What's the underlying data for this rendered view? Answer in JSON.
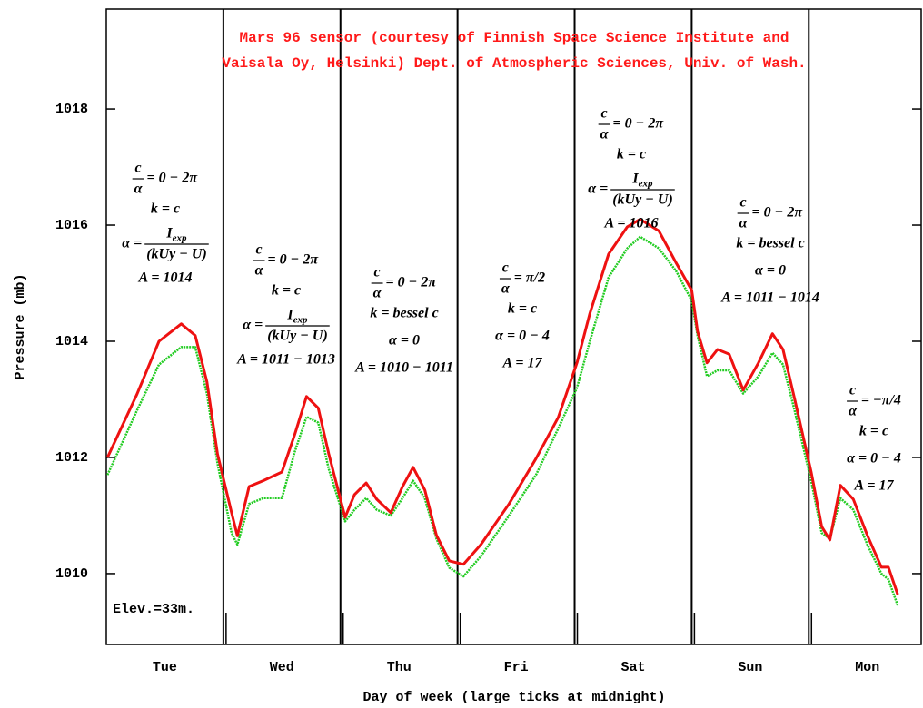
{
  "chart_data": {
    "type": "line",
    "title_lines": [
      "Mars 96 sensor (courtesy of Finnish Space Science Institute and",
      "Vaisala Oy, Helsinki) Dept. of Atmospheric Sciences, Univ. of Wash."
    ],
    "y_label": "Pressure (mb)",
    "x_label": "Day of week (large ticks at midnight)",
    "note": "Elev.=33m.",
    "categories": [
      "Tue",
      "Wed",
      "Thu",
      "Fri",
      "Sat",
      "Sun",
      "Mon"
    ],
    "xlim": [
      0,
      6.96
    ],
    "ylim": [
      1008.78,
      1019.72
    ],
    "yticks": [
      1010,
      1012,
      1014,
      1016,
      1018
    ],
    "x": [
      0.01,
      0.26,
      0.45,
      0.64,
      0.76,
      0.86,
      0.95,
      1.07,
      1.12,
      1.22,
      1.34,
      1.5,
      1.61,
      1.71,
      1.81,
      1.9,
      2.04,
      2.12,
      2.22,
      2.31,
      2.43,
      2.53,
      2.62,
      2.72,
      2.82,
      2.93,
      3.05,
      3.2,
      3.44,
      3.67,
      3.86,
      4.02,
      4.13,
      4.29,
      4.45,
      4.56,
      4.72,
      4.87,
      5.0,
      5.05,
      5.13,
      5.22,
      5.32,
      5.44,
      5.57,
      5.69,
      5.78,
      5.88,
      6.02,
      6.11,
      6.18,
      6.27,
      6.38,
      6.5,
      6.62,
      6.68,
      6.76
    ],
    "series": [
      {
        "color": "#22cc22",
        "values": [
          1011.7,
          1012.8,
          1013.6,
          1013.9,
          1013.9,
          1013.1,
          1011.9,
          1010.7,
          1010.5,
          1011.2,
          1011.3,
          1011.3,
          1012.1,
          1012.7,
          1012.6,
          1011.8,
          1010.9,
          1011.1,
          1011.3,
          1011.1,
          1011.0,
          1011.3,
          1011.6,
          1011.3,
          1010.6,
          1010.1,
          1009.95,
          1010.3,
          1011.0,
          1011.7,
          1012.5,
          1013.2,
          1014.0,
          1015.1,
          1015.6,
          1015.8,
          1015.6,
          1015.2,
          1014.7,
          1014.1,
          1013.4,
          1013.5,
          1013.5,
          1013.1,
          1013.4,
          1013.8,
          1013.6,
          1012.8,
          1011.6,
          1010.7,
          1010.6,
          1011.3,
          1011.1,
          1010.5,
          1010.0,
          1009.9,
          1009.45
        ]
      },
      {
        "color": "#ee1111",
        "values": [
          1012.0,
          1013.08,
          1014.0,
          1014.3,
          1014.1,
          1013.3,
          1012.06,
          1011.05,
          1010.65,
          1011.5,
          1011.6,
          1011.75,
          1012.4,
          1013.05,
          1012.85,
          1012.06,
          1010.97,
          1011.36,
          1011.56,
          1011.28,
          1011.05,
          1011.5,
          1011.83,
          1011.44,
          1010.66,
          1010.22,
          1010.16,
          1010.5,
          1011.2,
          1011.98,
          1012.69,
          1013.63,
          1014.48,
          1015.5,
          1015.97,
          1016.1,
          1015.9,
          1015.34,
          1014.88,
          1014.17,
          1013.63,
          1013.86,
          1013.78,
          1013.16,
          1013.63,
          1014.13,
          1013.86,
          1013.0,
          1011.75,
          1010.81,
          1010.58,
          1011.52,
          1011.28,
          1010.66,
          1010.11,
          1010.11,
          1009.64
        ]
      }
    ],
    "annotations": [
      {
        "lines": [
          {
            "num": "c",
            "den": "α",
            "post": "= 0 − 2π"
          },
          "k = c",
          {
            "pre": "α =",
            "num": "I",
            "num_sub": "exp",
            "den": "(kUy − U)"
          },
          "A = 1014"
        ]
      },
      {
        "lines": [
          {
            "num": "c",
            "den": "α",
            "post": "= 0 − 2π"
          },
          "k = c",
          {
            "pre": "α =",
            "num": "I",
            "num_sub": "exp",
            "den": "(kUy − U)"
          },
          "A = 1011 − 1013"
        ]
      },
      {
        "lines": [
          {
            "num": "c",
            "den": "α",
            "post": "= 0 − 2π"
          },
          "k = bessel c",
          "α = 0",
          "A = 1010 − 1011"
        ]
      },
      {
        "lines": [
          {
            "num": "c",
            "den": "α",
            "post": "= π/2"
          },
          "k = c",
          "α = 0 − 4",
          "A = 17"
        ]
      },
      {
        "lines": [
          {
            "num": "c",
            "den": "α",
            "post": "= 0 − 2π"
          },
          "k = c",
          {
            "pre": "α =",
            "num": "I",
            "num_sub": "exp",
            "den": "(kUy − U)"
          },
          "A = 1016"
        ]
      },
      {
        "lines": [
          {
            "num": "c",
            "den": "α",
            "post": "= 0 − 2π"
          },
          "k = bessel c",
          "α = 0",
          "A = 1011 − 1014"
        ]
      },
      {
        "lines": [
          {
            "num": "c",
            "den": "α",
            "post": "= −π/4"
          },
          "k = c",
          "α = 0 − 4",
          "A = 17"
        ]
      }
    ]
  }
}
